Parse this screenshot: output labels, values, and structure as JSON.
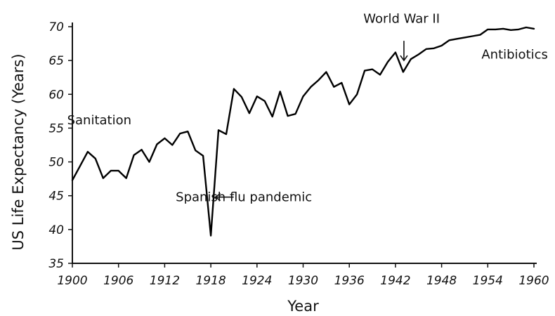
{
  "chart_data": {
    "type": "line",
    "title": "",
    "xlabel": "Year",
    "ylabel": "US Life Expectancy (Years)",
    "xlim": [
      1900,
      1960
    ],
    "ylim": [
      35,
      70
    ],
    "x_ticks": [
      1900,
      1906,
      1912,
      1918,
      1924,
      1930,
      1936,
      1942,
      1948,
      1954,
      1960
    ],
    "y_ticks": [
      35,
      40,
      45,
      50,
      55,
      60,
      65,
      70
    ],
    "grid": false,
    "series": [
      {
        "x": [
          1900,
          1901,
          1902,
          1903,
          1904,
          1905,
          1906,
          1907,
          1908,
          1909,
          1910,
          1911,
          1912,
          1913,
          1914,
          1915,
          1916,
          1917,
          1918,
          1919,
          1920,
          1921,
          1922,
          1923,
          1924,
          1925,
          1926,
          1927,
          1928,
          1929,
          1930,
          1931,
          1932,
          1933,
          1934,
          1935,
          1936,
          1937,
          1938,
          1939,
          1940,
          1941,
          1942,
          1943,
          1944,
          1945,
          1946,
          1947,
          1948,
          1949,
          1950,
          1951,
          1952,
          1953,
          1954,
          1955,
          1956,
          1957,
          1958,
          1959,
          1960
        ],
        "values": [
          47.3,
          49.4,
          51.5,
          50.5,
          47.6,
          48.7,
          48.7,
          47.6,
          51.0,
          51.8,
          50.0,
          52.6,
          53.5,
          52.5,
          54.2,
          54.5,
          51.7,
          50.9,
          39.1,
          54.7,
          54.1,
          60.8,
          59.6,
          57.2,
          59.7,
          59.0,
          56.7,
          60.4,
          56.8,
          57.1,
          59.7,
          61.1,
          62.1,
          63.3,
          61.1,
          61.7,
          58.5,
          60.0,
          63.5,
          63.7,
          62.9,
          64.8,
          66.2,
          63.3,
          65.2,
          65.9,
          66.7,
          66.8,
          67.2,
          68.0,
          68.2,
          68.4,
          68.6,
          68.8,
          69.6,
          69.6,
          69.7,
          69.5,
          69.6,
          69.9,
          69.7
        ]
      }
    ],
    "annotations": [
      {
        "text": "Sanitation",
        "x": 1903.5,
        "y": 56.2,
        "arrow": false
      },
      {
        "text": "Spanish flu pandemic",
        "x": 1922.3,
        "y": 44.8,
        "arrow": true,
        "arrow_to": [
          1918.6,
          44.8
        ]
      },
      {
        "text": "World War II",
        "x": 1942.8,
        "y": 71.2,
        "arrow": true,
        "arrow_to": [
          1943.1,
          65.0
        ]
      },
      {
        "text": "Antibiotics",
        "x": 1957.5,
        "y": 65.9,
        "arrow": false
      }
    ]
  }
}
